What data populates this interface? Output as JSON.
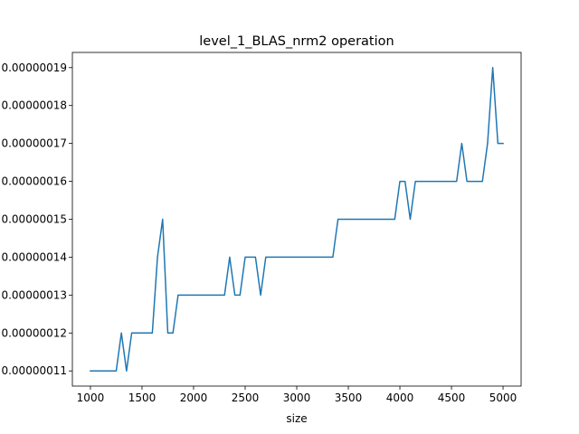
{
  "chart_data": {
    "type": "line",
    "title": "level_1_BLAS_nrm2 operation",
    "xlabel": "size",
    "ylabel": "",
    "xlim": [
      825,
      5175
    ],
    "ylim": [
      1.06e-07,
      1.94e-07
    ],
    "x_ticks": [
      1000,
      1500,
      2000,
      2500,
      3000,
      3500,
      4000,
      4500,
      5000
    ],
    "x_tick_labels": [
      "1000",
      "1500",
      "2000",
      "2500",
      "3000",
      "3500",
      "4000",
      "4500",
      "5000"
    ],
    "y_ticks": [
      1.1e-07,
      1.2e-07,
      1.3e-07,
      1.4e-07,
      1.5e-07,
      1.6e-07,
      1.7e-07,
      1.8e-07,
      1.9e-07
    ],
    "y_tick_labels": [
      "0.00000011",
      "0.00000012",
      "0.00000013",
      "0.00000014",
      "0.00000015",
      "0.00000016",
      "0.00000017",
      "0.00000018",
      "0.00000019"
    ],
    "grid": false,
    "legend": "none",
    "series": [
      {
        "color": "#1f77b4",
        "x": [
          1000,
          1050,
          1100,
          1150,
          1200,
          1250,
          1300,
          1350,
          1400,
          1450,
          1500,
          1550,
          1600,
          1650,
          1700,
          1750,
          1800,
          1850,
          1900,
          1950,
          2000,
          2050,
          2100,
          2150,
          2200,
          2250,
          2300,
          2350,
          2400,
          2450,
          2500,
          2550,
          2600,
          2650,
          2700,
          2750,
          2800,
          2850,
          2900,
          2950,
          3000,
          3050,
          3100,
          3150,
          3200,
          3250,
          3300,
          3350,
          3400,
          3450,
          3500,
          3550,
          3600,
          3650,
          3700,
          3750,
          3800,
          3850,
          3900,
          3950,
          4000,
          4050,
          4100,
          4150,
          4200,
          4250,
          4300,
          4350,
          4400,
          4450,
          4500,
          4550,
          4600,
          4650,
          4700,
          4750,
          4800,
          4850,
          4900,
          4950,
          5000
        ],
        "y": [
          1.1e-07,
          1.1e-07,
          1.1e-07,
          1.1e-07,
          1.1e-07,
          1.1e-07,
          1.2e-07,
          1.1e-07,
          1.2e-07,
          1.2e-07,
          1.2e-07,
          1.2e-07,
          1.2e-07,
          1.4e-07,
          1.5e-07,
          1.2e-07,
          1.2e-07,
          1.3e-07,
          1.3e-07,
          1.3e-07,
          1.3e-07,
          1.3e-07,
          1.3e-07,
          1.3e-07,
          1.3e-07,
          1.3e-07,
          1.3e-07,
          1.4e-07,
          1.3e-07,
          1.3e-07,
          1.4e-07,
          1.4e-07,
          1.4e-07,
          1.3e-07,
          1.4e-07,
          1.4e-07,
          1.4e-07,
          1.4e-07,
          1.4e-07,
          1.4e-07,
          1.4e-07,
          1.4e-07,
          1.4e-07,
          1.4e-07,
          1.4e-07,
          1.4e-07,
          1.4e-07,
          1.4e-07,
          1.5e-07,
          1.5e-07,
          1.5e-07,
          1.5e-07,
          1.5e-07,
          1.5e-07,
          1.5e-07,
          1.5e-07,
          1.5e-07,
          1.5e-07,
          1.5e-07,
          1.5e-07,
          1.6e-07,
          1.6e-07,
          1.5e-07,
          1.6e-07,
          1.6e-07,
          1.6e-07,
          1.6e-07,
          1.6e-07,
          1.6e-07,
          1.6e-07,
          1.6e-07,
          1.6e-07,
          1.7e-07,
          1.6e-07,
          1.6e-07,
          1.6e-07,
          1.6e-07,
          1.7e-07,
          1.9e-07,
          1.7e-07,
          1.7e-07
        ]
      }
    ]
  }
}
